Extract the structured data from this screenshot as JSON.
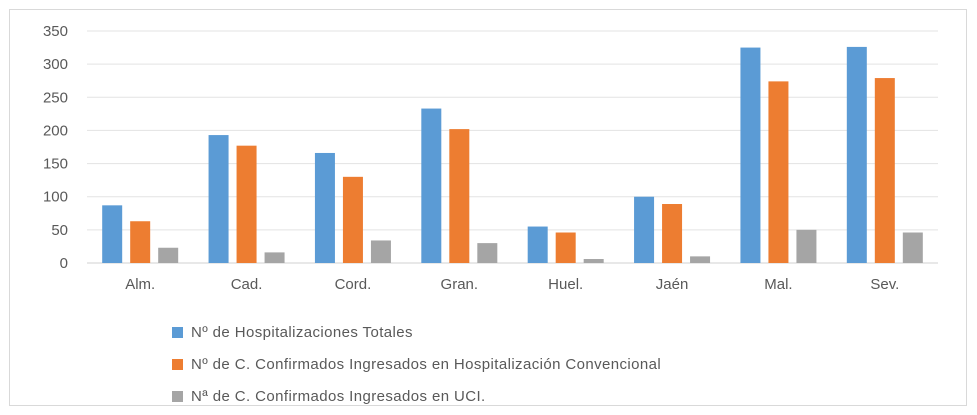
{
  "chart_data": {
    "type": "bar",
    "categories": [
      "Alm.",
      "Cad.",
      "Cord.",
      "Gran.",
      "Huel.",
      "Jaén",
      "Mal.",
      "Sev."
    ],
    "series": [
      {
        "name": "Nº de Hospitalizaciones Totales",
        "color": "#5b9bd5",
        "values": [
          87,
          193,
          166,
          233,
          55,
          100,
          325,
          326
        ]
      },
      {
        "name": "Nº de C. Confirmados Ingresados en Hospitalización Convencional",
        "color": "#ed7d31",
        "values": [
          63,
          177,
          130,
          202,
          46,
          89,
          274,
          279
        ]
      },
      {
        "name": "Nª de C. Confirmados Ingresados en UCI.",
        "color": "#a5a5a5",
        "values": [
          23,
          16,
          34,
          30,
          6,
          10,
          50,
          46
        ]
      }
    ],
    "yticks": [
      "0",
      "50",
      "100",
      "150",
      "200",
      "250",
      "300",
      "350"
    ],
    "ylim": [
      0,
      350
    ],
    "grid": true,
    "legend_position": "bottom-left",
    "title": "",
    "xlabel": "",
    "ylabel": ""
  }
}
